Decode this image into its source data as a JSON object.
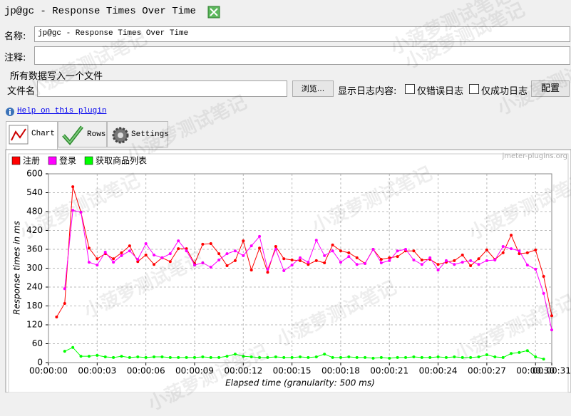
{
  "window": {
    "title": "jp@gc - Response Times Over Time"
  },
  "form": {
    "name_label": "名称:",
    "name_value": "jp@gc - Response Times Over Time",
    "comment_label": "注释:",
    "file_section": "所有数据写入一个文件",
    "file_label": "文件名",
    "browse_button": "浏览...",
    "log_label": "显示日志内容:",
    "errors_only": "仅错误日志",
    "success_only": "仅成功日志",
    "configure_button": "配置"
  },
  "help_link": "Help on this plugin",
  "tabs": [
    "Chart",
    "Rows",
    "Settings"
  ],
  "watermark": "小菠萝测试笔记",
  "chart_data": {
    "type": "line",
    "credit": "jmeter-plugins.org",
    "xlabel": "Elapsed time (granularity: 500 ms)",
    "ylabel": "Response times in ms",
    "x": [
      0.5,
      1,
      1.5,
      2,
      2.5,
      3,
      3.5,
      4,
      4.5,
      5,
      5.5,
      6,
      6.5,
      7,
      7.5,
      8,
      8.5,
      9,
      9.5,
      10,
      10.5,
      11,
      11.5,
      12,
      12.5,
      13,
      13.5,
      14,
      14.5,
      15,
      15.5,
      16,
      16.5,
      17,
      17.5,
      18,
      18.5,
      19,
      19.5,
      20,
      20.5,
      21,
      21.5,
      22,
      22.5,
      23,
      23.5,
      24,
      24.5,
      25,
      25.5,
      26,
      26.5,
      27,
      27.5,
      28,
      28.5,
      29,
      29.5,
      30,
      30.5,
      31
    ],
    "xlim": [
      0,
      31
    ],
    "xticks": [
      {
        "value": 0,
        "label": "00:00:00"
      },
      {
        "value": 3,
        "label": "00:00:03"
      },
      {
        "value": 6,
        "label": "00:00:06"
      },
      {
        "value": 9,
        "label": "00:00:09"
      },
      {
        "value": 12,
        "label": "00:00:12"
      },
      {
        "value": 15,
        "label": "00:00:15"
      },
      {
        "value": 18,
        "label": "00:00:18"
      },
      {
        "value": 21,
        "label": "00:00:21"
      },
      {
        "value": 24,
        "label": "00:00:24"
      },
      {
        "value": 27,
        "label": "00:00:27"
      },
      {
        "value": 30,
        "label": "00:00:30"
      },
      {
        "value": 31,
        "label": "00:00:31"
      }
    ],
    "ylim": [
      0,
      600
    ],
    "yticks": [
      0,
      60,
      120,
      180,
      240,
      300,
      360,
      420,
      480,
      540,
      600
    ],
    "grid": true,
    "legend": "top-left",
    "series": [
      {
        "name": "注册",
        "color": "#ff0000",
        "values": [
          145,
          188,
          559,
          478,
          364,
          330,
          346,
          330,
          349,
          371,
          321,
          342,
          312,
          333,
          321,
          362,
          362,
          315,
          376,
          378,
          346,
          308,
          324,
          387,
          294,
          364,
          287,
          369,
          330,
          326,
          324,
          312,
          324,
          317,
          374,
          355,
          349,
          333,
          315,
          360,
          328,
          333,
          337,
          355,
          355,
          326,
          328,
          312,
          319,
          324,
          342,
          308,
          330,
          358,
          328,
          349,
          405,
          346,
          349,
          358,
          274,
          149
        ]
      },
      {
        "name": "登录",
        "color": "#ff00ff",
        "values": [
          null,
          235,
          484,
          478,
          319,
          310,
          351,
          319,
          340,
          355,
          328,
          378,
          342,
          333,
          346,
          387,
          355,
          310,
          317,
          303,
          326,
          346,
          355,
          340,
          371,
          401,
          297,
          360,
          292,
          310,
          333,
          319,
          389,
          340,
          355,
          319,
          337,
          312,
          315,
          360,
          317,
          324,
          355,
          360,
          326,
          312,
          333,
          294,
          324,
          312,
          319,
          324,
          312,
          324,
          326,
          369,
          362,
          355,
          310,
          297,
          220,
          104
        ]
      },
      {
        "name": "获取商品列表",
        "color": "#00ff00",
        "values": [
          null,
          36,
          48,
          20,
          20,
          23,
          18,
          16,
          20,
          16,
          18,
          16,
          18,
          18,
          16,
          16,
          16,
          16,
          18,
          16,
          16,
          20,
          27,
          20,
          18,
          16,
          16,
          18,
          16,
          16,
          18,
          16,
          18,
          27,
          16,
          16,
          18,
          16,
          16,
          14,
          16,
          14,
          16,
          16,
          18,
          16,
          16,
          18,
          16,
          18,
          16,
          16,
          18,
          25,
          18,
          16,
          29,
          32,
          38,
          18,
          11,
          null
        ]
      }
    ]
  }
}
